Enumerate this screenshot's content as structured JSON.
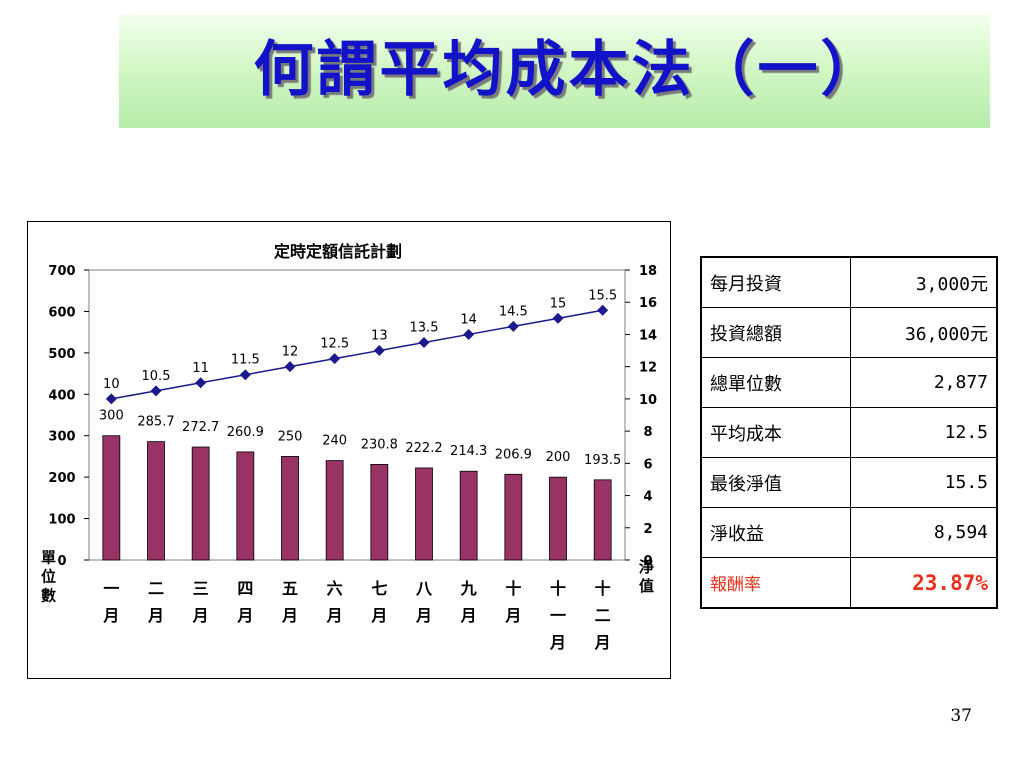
{
  "slide": {
    "title": "何謂平均成本法（一）",
    "page_number": "37"
  },
  "chart_data": {
    "type": "bar+line",
    "title": "定時定額信託計劃",
    "categories": [
      "一月",
      "二月",
      "三月",
      "四月",
      "五月",
      "六月",
      "七月",
      "八月",
      "九月",
      "十月",
      "十一月",
      "十二月"
    ],
    "series": [
      {
        "type": "bar",
        "axis": "left",
        "color": "#993366",
        "values": [
          300,
          285.7,
          272.7,
          260.9,
          250,
          240,
          230.8,
          222.2,
          214.3,
          206.9,
          200,
          193.5
        ]
      },
      {
        "type": "line",
        "axis": "right",
        "color": "#1a1a8c",
        "values": [
          10,
          10.5,
          11,
          11.5,
          12,
          12.5,
          13,
          13.5,
          14,
          14.5,
          15,
          15.5
        ]
      }
    ],
    "ylabel": "單位數",
    "y2label": "淨值",
    "ylim": [
      0,
      700
    ],
    "y2lim": [
      0,
      18
    ],
    "yticks": [
      "0",
      "100",
      "200",
      "300",
      "400",
      "500",
      "600",
      "700"
    ],
    "y2ticks": [
      "0",
      "2",
      "4",
      "6",
      "8",
      "10",
      "12",
      "14",
      "16",
      "18"
    ],
    "grid": false,
    "legend": "none"
  },
  "summary": {
    "rows": [
      {
        "label": "每月投資",
        "value": "3,000元"
      },
      {
        "label": "投資總額",
        "value": "36,000元"
      },
      {
        "label": "總單位數",
        "value": "2,877"
      },
      {
        "label": "平均成本",
        "value": "12.5"
      },
      {
        "label": "最後淨值",
        "value": "15.5"
      },
      {
        "label": "淨收益",
        "value": "8,594"
      },
      {
        "label": "報酬率",
        "value": "23.87%",
        "highlight": true
      }
    ]
  },
  "colors": {
    "title_text": "#1212c8",
    "bar": "#993366",
    "line": "#1a1a8c",
    "highlight": "#e8301a"
  }
}
